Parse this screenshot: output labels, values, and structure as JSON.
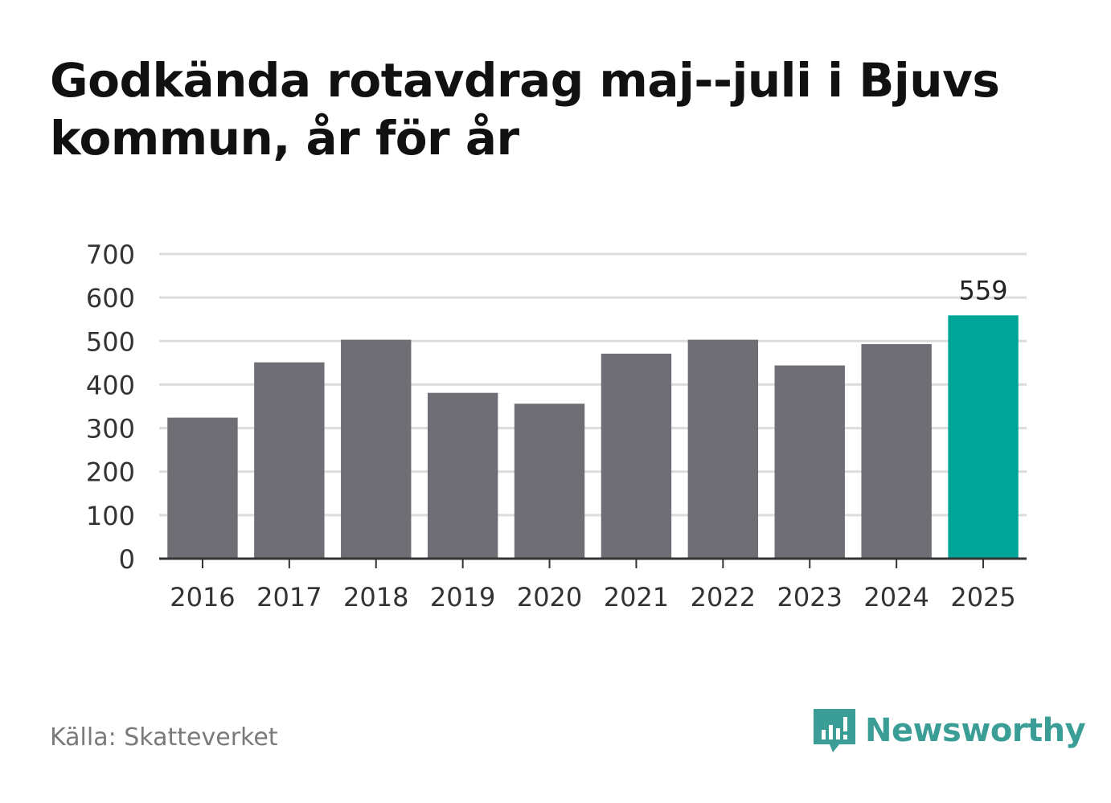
{
  "chart_data": {
    "type": "bar",
    "title": "Godkända rotavdrag maj--juli i Bjuvs kommun, år för år",
    "categories": [
      "2016",
      "2017",
      "2018",
      "2019",
      "2020",
      "2021",
      "2022",
      "2023",
      "2024",
      "2025"
    ],
    "values": [
      324,
      451,
      503,
      381,
      356,
      471,
      503,
      444,
      493,
      559
    ],
    "yticks": [
      "0",
      "100",
      "200",
      "300",
      "400",
      "500",
      "600",
      "700"
    ],
    "ylim": [
      0,
      700
    ],
    "grid": true,
    "highlight_index": 9,
    "highlight_label": "559",
    "colors": {
      "bar": "#6f6e75",
      "highlight": "#00a598",
      "grid": "#dcdcdc",
      "axis": "#333333"
    }
  },
  "footer": {
    "source": "Källa: Skatteverket",
    "brand": "Newsworthy",
    "brand_icon": "newsworthy-logo-icon"
  }
}
